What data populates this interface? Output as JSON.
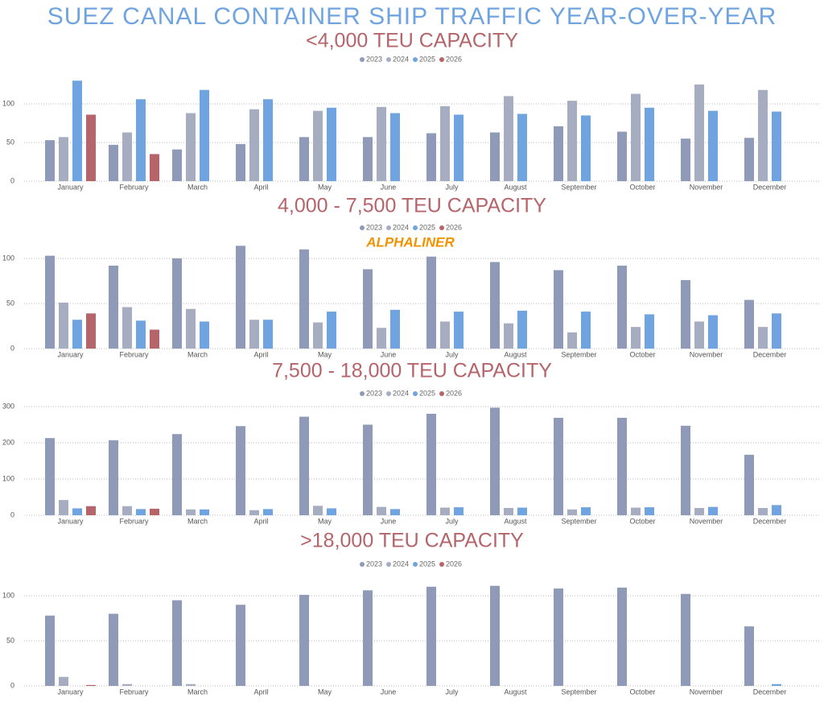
{
  "title": "SUEZ CANAL CONTAINER SHIP TRAFFIC YEAR-OVER-YEAR",
  "logo": "ALPHALINER",
  "chart_data": [
    {
      "type": "bar",
      "title": "<4,000 TEU CAPACITY",
      "categories": [
        "January",
        "February",
        "March",
        "April",
        "May",
        "June",
        "July",
        "August",
        "September",
        "October",
        "November",
        "December"
      ],
      "series": [
        {
          "name": "2023",
          "color": "#8e9ab8",
          "values": [
            53,
            47,
            41,
            48,
            57,
            57,
            62,
            63,
            71,
            64,
            55,
            56
          ]
        },
        {
          "name": "2024",
          "color": "#a7adc1",
          "values": [
            57,
            63,
            88,
            93,
            91,
            96,
            97,
            110,
            104,
            113,
            125,
            118
          ]
        },
        {
          "name": "2025",
          "color": "#6fa4e0",
          "values": [
            130,
            106,
            118,
            106,
            95,
            88,
            86,
            87,
            85,
            95,
            91,
            90
          ]
        },
        {
          "name": "2026",
          "color": "#b5646a",
          "values": [
            86,
            35,
            null,
            null,
            null,
            null,
            null,
            null,
            null,
            null,
            null,
            null
          ]
        }
      ],
      "ylim": [
        0,
        140
      ],
      "yticks": [
        0,
        50,
        100
      ],
      "grid": true,
      "legend": "top"
    },
    {
      "type": "bar",
      "title": "4,000 - 7,500 TEU CAPACITY",
      "categories": [
        "January",
        "February",
        "March",
        "April",
        "May",
        "June",
        "July",
        "August",
        "September",
        "October",
        "November",
        "December"
      ],
      "series": [
        {
          "name": "2023",
          "color": "#8e9ab8",
          "values": [
            103,
            92,
            100,
            114,
            110,
            88,
            102,
            96,
            87,
            92,
            76,
            54
          ]
        },
        {
          "name": "2024",
          "color": "#a7adc1",
          "values": [
            51,
            46,
            44,
            32,
            29,
            23,
            30,
            28,
            18,
            24,
            30,
            24
          ]
        },
        {
          "name": "2025",
          "color": "#6fa4e0",
          "values": [
            32,
            31,
            30,
            32,
            41,
            43,
            41,
            42,
            41,
            38,
            37,
            39
          ]
        },
        {
          "name": "2026",
          "color": "#b5646a",
          "values": [
            39,
            21,
            null,
            null,
            null,
            null,
            null,
            null,
            null,
            null,
            null,
            null
          ]
        }
      ],
      "ylim": [
        0,
        120
      ],
      "yticks": [
        0,
        50,
        100
      ],
      "grid": true,
      "legend": "top"
    },
    {
      "type": "bar",
      "title": "7,500 - 18,000 TEU CAPACITY",
      "categories": [
        "January",
        "February",
        "March",
        "April",
        "May",
        "June",
        "July",
        "August",
        "September",
        "October",
        "November",
        "December"
      ],
      "series": [
        {
          "name": "2023",
          "color": "#8e9ab8",
          "values": [
            213,
            207,
            224,
            246,
            272,
            250,
            280,
            297,
            269,
            269,
            247,
            167
          ]
        },
        {
          "name": "2024",
          "color": "#a7adc1",
          "values": [
            42,
            25,
            16,
            14,
            26,
            23,
            21,
            20,
            16,
            21,
            20,
            20
          ]
        },
        {
          "name": "2025",
          "color": "#6fa4e0",
          "values": [
            19,
            17,
            16,
            17,
            19,
            17,
            22,
            21,
            22,
            22,
            23,
            28
          ]
        },
        {
          "name": "2026",
          "color": "#b5646a",
          "values": [
            25,
            18,
            null,
            null,
            null,
            null,
            null,
            null,
            null,
            null,
            null,
            null
          ]
        }
      ],
      "ylim": [
        0,
        300
      ],
      "yticks": [
        0,
        100,
        200,
        300
      ],
      "grid": true,
      "legend": "top"
    },
    {
      "type": "bar",
      "title": ">18,000 TEU CAPACITY",
      "categories": [
        "January",
        "February",
        "March",
        "April",
        "May",
        "June",
        "July",
        "August",
        "September",
        "October",
        "November",
        "December"
      ],
      "series": [
        {
          "name": "2023",
          "color": "#8e9ab8",
          "values": [
            78,
            80,
            95,
            90,
            101,
            106,
            110,
            111,
            108,
            109,
            102,
            66
          ]
        },
        {
          "name": "2024",
          "color": "#a7adc1",
          "values": [
            10,
            2,
            2,
            null,
            null,
            null,
            null,
            null,
            null,
            null,
            null,
            null
          ]
        },
        {
          "name": "2025",
          "color": "#6fa4e0",
          "values": [
            null,
            null,
            null,
            null,
            null,
            null,
            null,
            null,
            null,
            null,
            null,
            2
          ]
        },
        {
          "name": "2026",
          "color": "#b5646a",
          "values": [
            1,
            null,
            null,
            null,
            null,
            null,
            null,
            null,
            null,
            null,
            null,
            null
          ]
        }
      ],
      "ylim": [
        0,
        120
      ],
      "yticks": [
        0,
        50,
        100
      ],
      "grid": true,
      "legend": "top"
    }
  ]
}
